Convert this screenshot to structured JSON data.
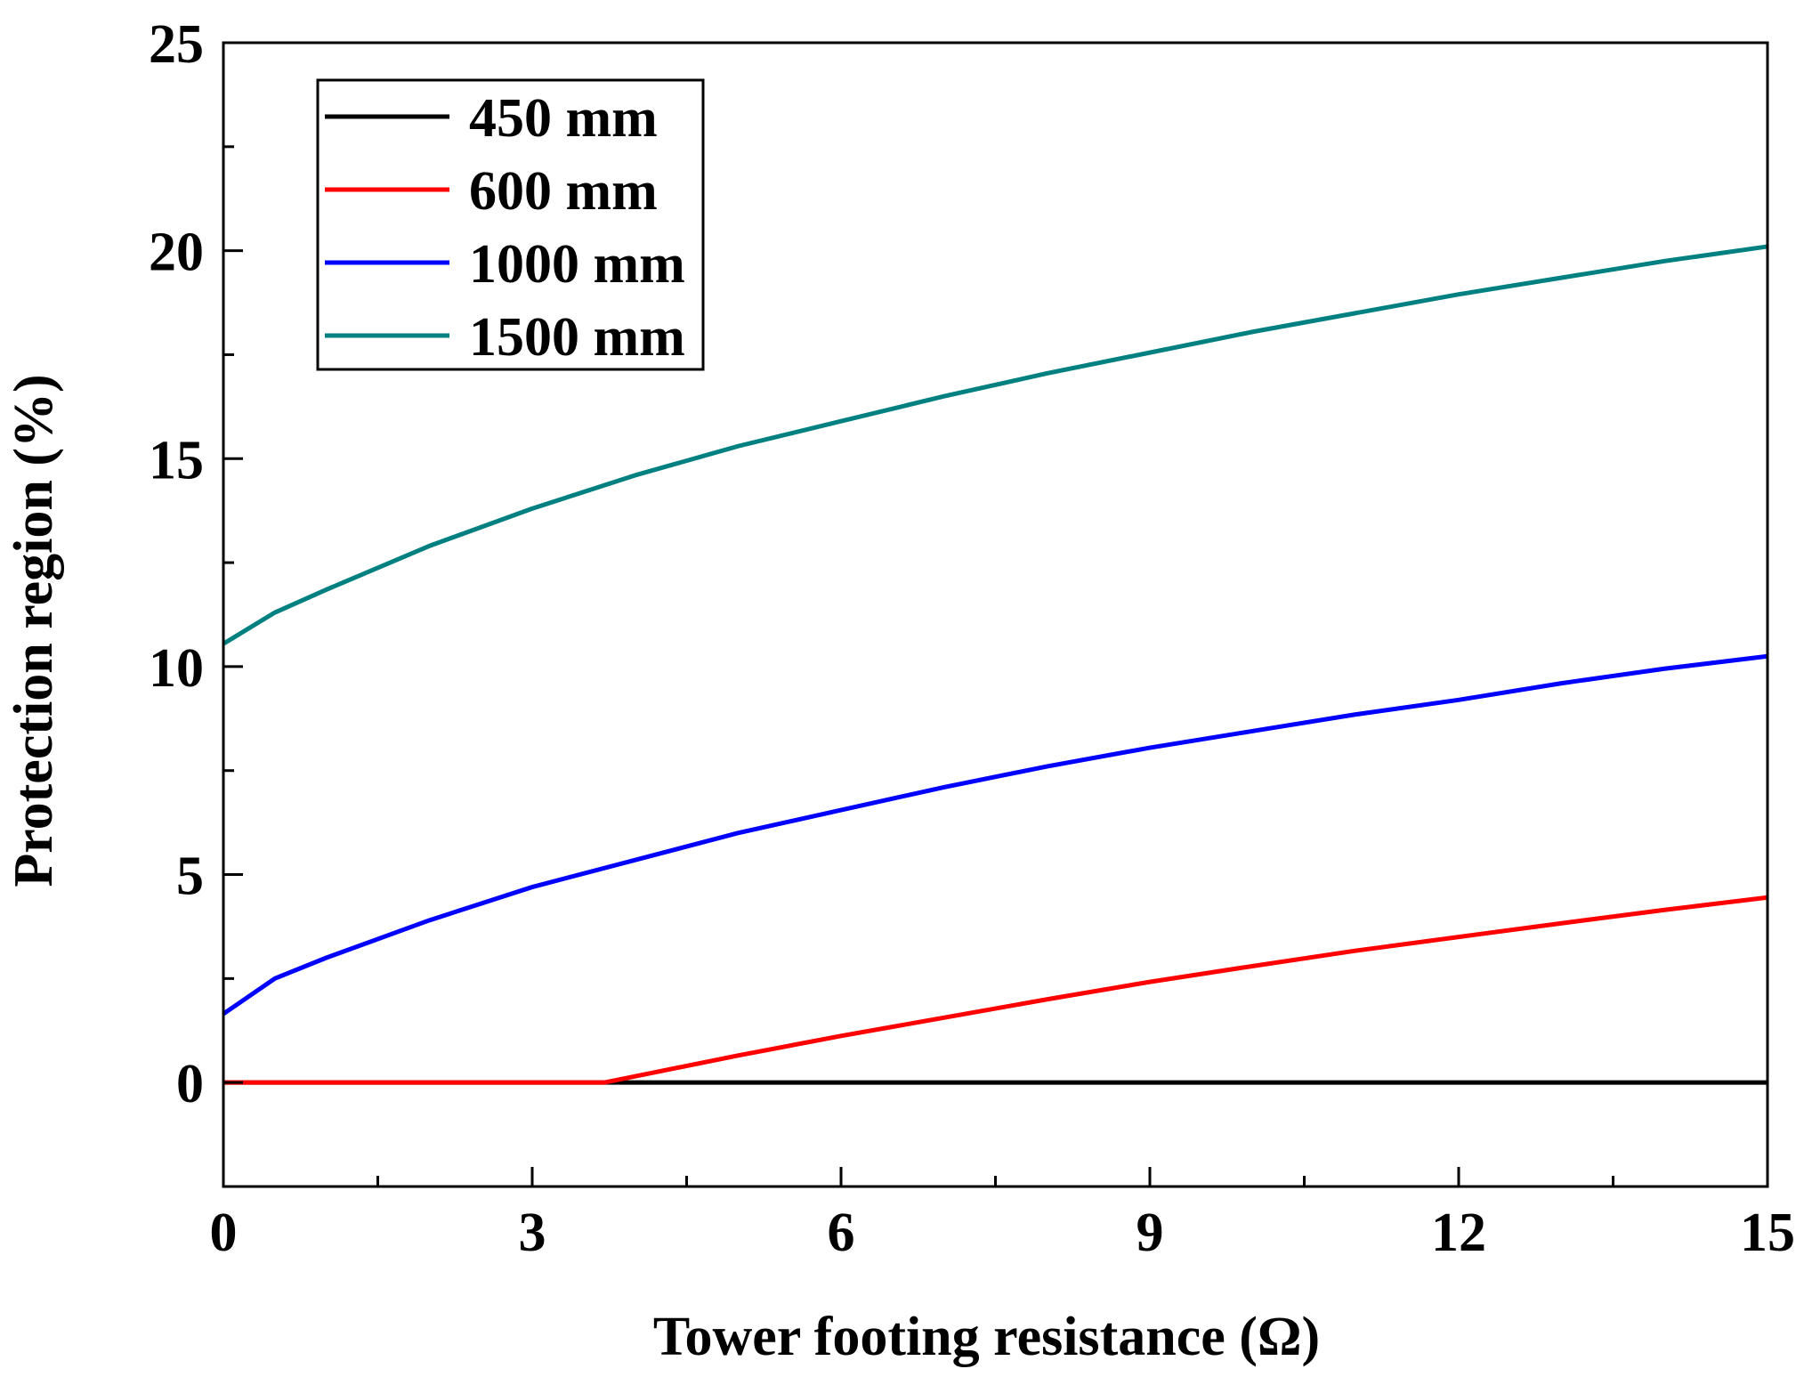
{
  "chart_data": {
    "type": "line",
    "title": "",
    "xlabel": "Tower footing resistance (Ω)",
    "ylabel": "Protection region (%)",
    "xlim": [
      0,
      15
    ],
    "ylim": [
      -2.5,
      25
    ],
    "xticks": [
      0,
      3,
      6,
      9,
      12,
      15
    ],
    "xtick_labels": [
      "0",
      "3",
      "6",
      "9",
      "12",
      "15"
    ],
    "yticks": [
      0,
      5,
      10,
      15,
      20,
      25
    ],
    "ytick_labels": [
      "0",
      "5",
      "10",
      "15",
      "20",
      "25"
    ],
    "grid": false,
    "legend_position": "top-left",
    "series": [
      {
        "name": "450 mm",
        "color": "#000000",
        "x": [
          0,
          15
        ],
        "y": [
          0,
          0
        ]
      },
      {
        "name": "600 mm",
        "color": "#ff0000",
        "x": [
          0,
          1,
          2,
          3,
          3.7,
          4,
          5,
          6,
          7,
          8,
          9,
          10,
          11,
          12,
          13,
          14,
          15
        ],
        "y": [
          0,
          0,
          0,
          0,
          0,
          0.15,
          0.65,
          1.12,
          1.56,
          2.0,
          2.42,
          2.8,
          3.17,
          3.5,
          3.83,
          4.15,
          4.45
        ]
      },
      {
        "name": "1000 mm",
        "color": "#0000ff",
        "x": [
          0,
          0.5,
          1,
          2,
          3,
          4,
          5,
          6,
          7,
          8,
          9,
          10,
          11,
          12,
          13,
          14,
          15
        ],
        "y": [
          1.65,
          2.5,
          3.0,
          3.9,
          4.7,
          5.35,
          6.0,
          6.55,
          7.1,
          7.6,
          8.05,
          8.45,
          8.85,
          9.2,
          9.6,
          9.95,
          10.25
        ]
      },
      {
        "name": "1500 mm",
        "color": "#008080",
        "x": [
          0,
          0.5,
          1,
          2,
          3,
          4,
          5,
          6,
          7,
          8,
          9,
          10,
          11,
          12,
          13,
          14,
          15
        ],
        "y": [
          10.55,
          11.3,
          11.85,
          12.9,
          13.8,
          14.6,
          15.3,
          15.9,
          16.5,
          17.05,
          17.55,
          18.05,
          18.5,
          18.95,
          19.35,
          19.75,
          20.1
        ]
      }
    ]
  }
}
